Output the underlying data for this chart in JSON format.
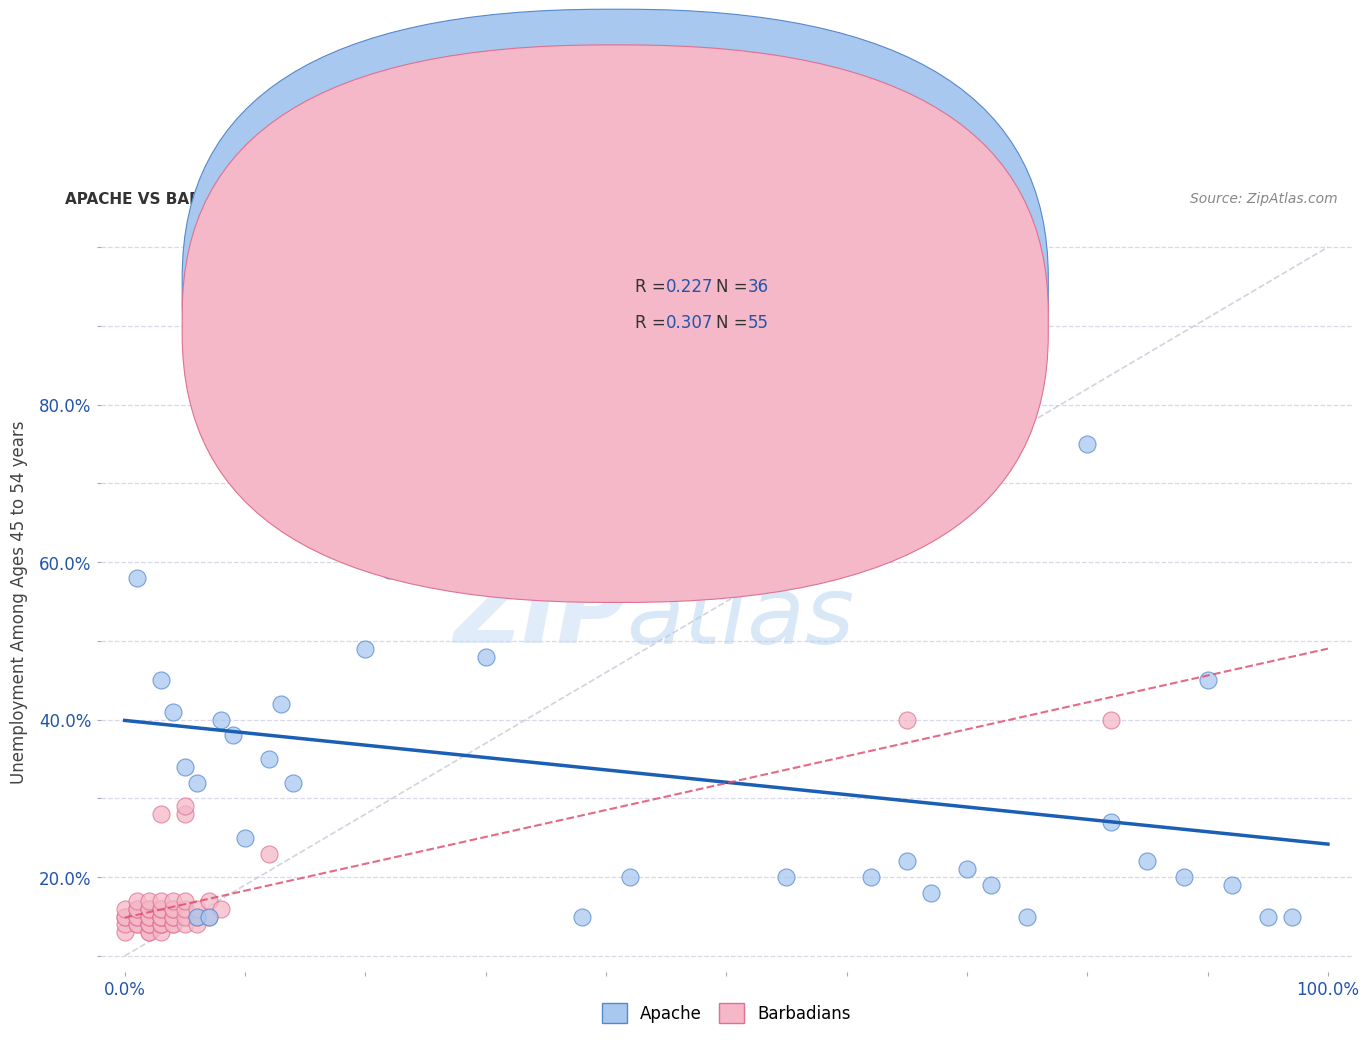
{
  "title": "APACHE VS BARBADIAN UNEMPLOYMENT AMONG AGES 45 TO 54 YEARS CORRELATION CHART",
  "source": "Source: ZipAtlas.com",
  "ylabel": "Unemployment Among Ages 45 to 54 years",
  "xlim": [
    -0.02,
    1.02
  ],
  "ylim": [
    -0.02,
    0.92
  ],
  "xticks": [
    0.0,
    0.1,
    0.2,
    0.3,
    0.4,
    0.5,
    0.6,
    0.7,
    0.8,
    0.9,
    1.0
  ],
  "yticks": [
    0.0,
    0.1,
    0.2,
    0.3,
    0.4,
    0.5,
    0.6,
    0.7,
    0.8,
    0.9
  ],
  "xtick_labels": [
    "0.0%",
    "",
    "",
    "",
    "",
    "",
    "",
    "",
    "",
    "",
    "100.0%"
  ],
  "ytick_labels": [
    "",
    "20.0%",
    "",
    "40.0%",
    "",
    "60.0%",
    "",
    "80.0%",
    "",
    ""
  ],
  "apache_color": "#a8c8f0",
  "barbadian_color": "#f4b8c8",
  "apache_edge": "#5588cc",
  "barbadian_edge": "#e07090",
  "trend_apache_color": "#1a5fb4",
  "trend_barbadian_color": "#e05070",
  "diagonal_color": "#c8c8d8",
  "watermark_color": "#ddeeff",
  "background_color": "#ffffff",
  "grid_color": "#d8d8e8",
  "apache_x": [
    0.01,
    0.03,
    0.04,
    0.05,
    0.06,
    0.06,
    0.07,
    0.08,
    0.09,
    0.1,
    0.12,
    0.13,
    0.14,
    0.2,
    0.22,
    0.28,
    0.3,
    0.38,
    0.42,
    0.48,
    0.5,
    0.55,
    0.62,
    0.65,
    0.67,
    0.7,
    0.72,
    0.75,
    0.8,
    0.82,
    0.85,
    0.88,
    0.9,
    0.92,
    0.95,
    0.97
  ],
  "apache_y": [
    0.48,
    0.35,
    0.31,
    0.24,
    0.22,
    0.05,
    0.05,
    0.3,
    0.28,
    0.15,
    0.25,
    0.32,
    0.22,
    0.39,
    0.49,
    0.49,
    0.38,
    0.05,
    0.1,
    0.49,
    0.49,
    0.1,
    0.1,
    0.12,
    0.08,
    0.11,
    0.09,
    0.05,
    0.65,
    0.17,
    0.12,
    0.1,
    0.35,
    0.09,
    0.05,
    0.05
  ],
  "barbadian_x": [
    0.0,
    0.0,
    0.0,
    0.0,
    0.0,
    0.01,
    0.01,
    0.01,
    0.01,
    0.01,
    0.01,
    0.01,
    0.02,
    0.02,
    0.02,
    0.02,
    0.02,
    0.02,
    0.02,
    0.02,
    0.02,
    0.02,
    0.03,
    0.03,
    0.03,
    0.03,
    0.03,
    0.03,
    0.03,
    0.03,
    0.03,
    0.03,
    0.03,
    0.04,
    0.04,
    0.04,
    0.04,
    0.04,
    0.04,
    0.04,
    0.05,
    0.05,
    0.05,
    0.05,
    0.05,
    0.05,
    0.06,
    0.06,
    0.06,
    0.07,
    0.07,
    0.08,
    0.12,
    0.65,
    0.82
  ],
  "barbadian_y": [
    0.03,
    0.04,
    0.05,
    0.05,
    0.06,
    0.04,
    0.04,
    0.05,
    0.05,
    0.06,
    0.06,
    0.07,
    0.03,
    0.03,
    0.04,
    0.04,
    0.04,
    0.05,
    0.05,
    0.06,
    0.06,
    0.07,
    0.03,
    0.04,
    0.04,
    0.04,
    0.05,
    0.05,
    0.05,
    0.06,
    0.06,
    0.07,
    0.18,
    0.04,
    0.04,
    0.05,
    0.05,
    0.06,
    0.06,
    0.07,
    0.04,
    0.05,
    0.06,
    0.07,
    0.18,
    0.19,
    0.04,
    0.05,
    0.06,
    0.05,
    0.07,
    0.06,
    0.13,
    0.3,
    0.3
  ]
}
